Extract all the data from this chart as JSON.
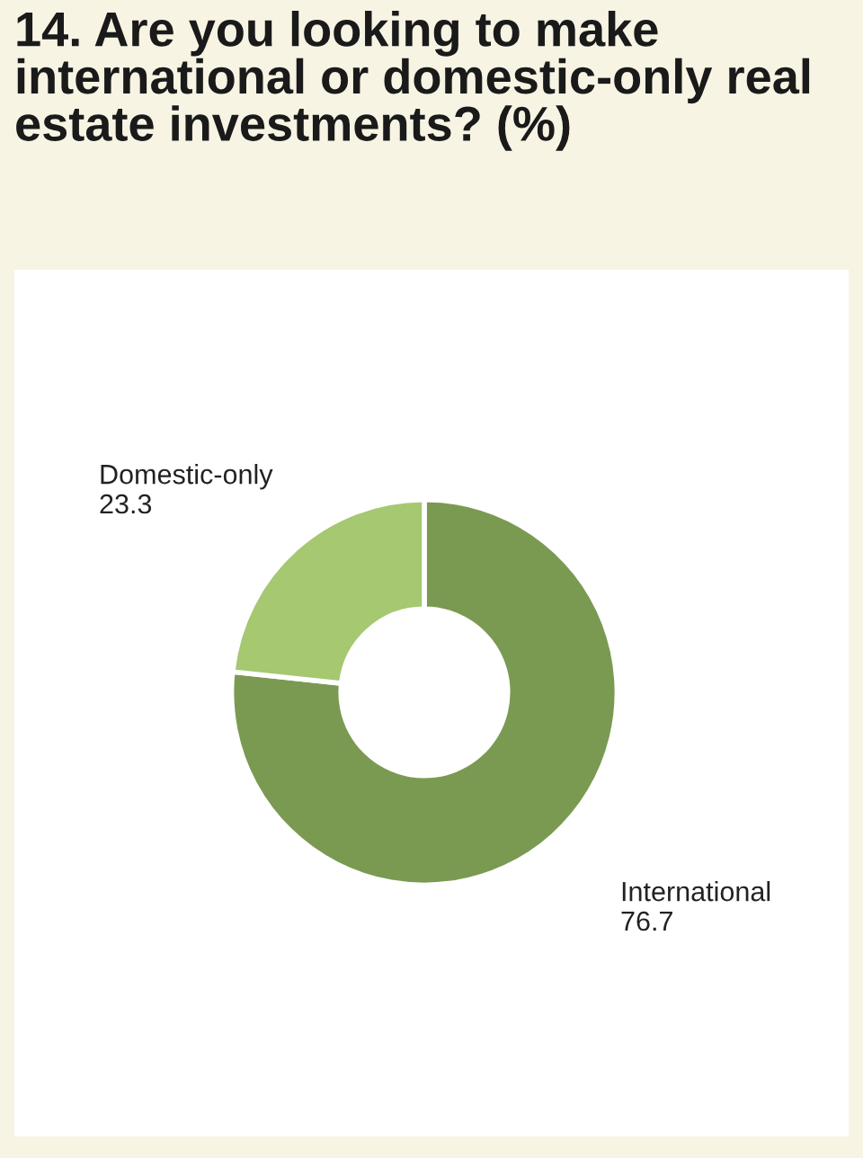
{
  "chart_data": {
    "type": "donut",
    "title": "14. Are you looking to make international or domestic-only real estate investments? (%)",
    "categories": [
      "International",
      "Domestic-only"
    ],
    "values": [
      76.7,
      23.3
    ],
    "colors": [
      "#7a9a52",
      "#a5c870"
    ],
    "data_labels": true
  }
}
